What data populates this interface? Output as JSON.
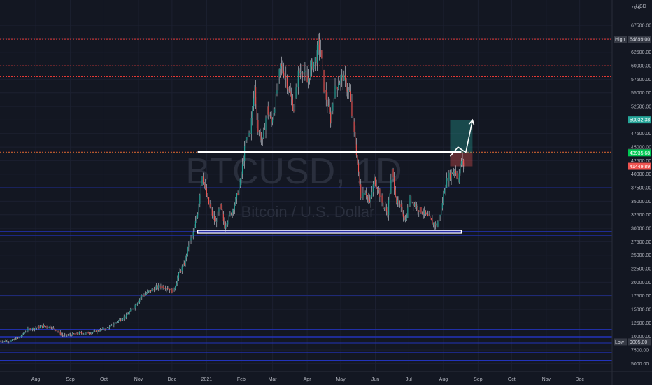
{
  "chart_data": {
    "type": "candlestick",
    "symbol": "BTCUSD",
    "interval": "1D",
    "watermark_symbol": "BTCUSD, 1D",
    "watermark_name": "Bitcoin / U.S. Dollar",
    "currency_label": "USD",
    "y_axis": {
      "min": 3500,
      "max": 71000,
      "scale": "linear",
      "ticks": [
        5000,
        7500,
        10000,
        12500,
        15000,
        17500,
        20000,
        22500,
        25000,
        27500,
        30000,
        32500,
        35000,
        37500,
        40000,
        42500,
        45000,
        47500,
        50000,
        52500,
        55000,
        57500,
        60000,
        62500,
        65000,
        67500
      ],
      "tick_labels": [
        "5000.00",
        "7500.00",
        "10000.00",
        "12500.00",
        "15000.00",
        "17500.00",
        "20000.00",
        "22500.00",
        "25000.00",
        "27500.00",
        "30000.00",
        "32500.00",
        "35000.00",
        "37500.00",
        "40000.00",
        "42500.00",
        "45000.00",
        "47500.00",
        "50000.00",
        "52500.00",
        "55000.00",
        "57500.00",
        "60000.00",
        "62500.00",
        "65000.00",
        "67500.00"
      ],
      "top_label": "70.0"
    },
    "x_axis": {
      "labels": [
        "Aug",
        "Sep",
        "Oct",
        "Nov",
        "Dec",
        "2021",
        "Feb",
        "Mar",
        "Apr",
        "May",
        "Jun",
        "Jul",
        "Aug",
        "Sep",
        "Oct",
        "Nov",
        "Dec"
      ],
      "range_days": [
        -25,
        523
      ]
    },
    "price_path": [
      [
        -25,
        9100
      ],
      [
        -15,
        9200
      ],
      [
        -8,
        9800
      ],
      [
        0,
        11300
      ],
      [
        7,
        11600
      ],
      [
        14,
        11900
      ],
      [
        21,
        11700
      ],
      [
        25,
        11200
      ],
      [
        31,
        10200
      ],
      [
        38,
        10300
      ],
      [
        45,
        10600
      ],
      [
        52,
        10600
      ],
      [
        59,
        10800
      ],
      [
        66,
        11300
      ],
      [
        73,
        11700
      ],
      [
        80,
        12800
      ],
      [
        88,
        13800
      ],
      [
        95,
        15500
      ],
      [
        102,
        17500
      ],
      [
        110,
        18500
      ],
      [
        118,
        19300
      ],
      [
        125,
        19000
      ],
      [
        130,
        18300
      ],
      [
        136,
        22000
      ],
      [
        140,
        23500
      ],
      [
        144,
        27000
      ],
      [
        148,
        29000
      ],
      [
        152,
        33000
      ],
      [
        156,
        40000
      ],
      [
        160,
        36000
      ],
      [
        164,
        33000
      ],
      [
        168,
        31000
      ],
      [
        172,
        34000
      ],
      [
        176,
        30500
      ],
      [
        180,
        32000
      ],
      [
        186,
        35000
      ],
      [
        190,
        38500
      ],
      [
        195,
        46000
      ],
      [
        199,
        48000
      ],
      [
        203,
        56000
      ],
      [
        206,
        48000
      ],
      [
        210,
        46000
      ],
      [
        214,
        52000
      ],
      [
        218,
        49500
      ],
      [
        222,
        54000
      ],
      [
        226,
        60000
      ],
      [
        230,
        58500
      ],
      [
        234,
        55000
      ],
      [
        238,
        52000
      ],
      [
        242,
        58500
      ],
      [
        246,
        59500
      ],
      [
        250,
        57000
      ],
      [
        254,
        60000
      ],
      [
        258,
        61500
      ],
      [
        260,
        64000
      ],
      [
        262,
        63000
      ],
      [
        265,
        56000
      ],
      [
        268,
        53000
      ],
      [
        271,
        50000
      ],
      [
        274,
        55000
      ],
      [
        278,
        57000
      ],
      [
        282,
        58000
      ],
      [
        285,
        56000
      ],
      [
        288,
        55000
      ],
      [
        291,
        49000
      ],
      [
        294,
        44000
      ],
      [
        298,
        36000
      ],
      [
        302,
        37000
      ],
      [
        306,
        34500
      ],
      [
        310,
        39000
      ],
      [
        314,
        37000
      ],
      [
        318,
        34000
      ],
      [
        322,
        33000
      ],
      [
        326,
        40500
      ],
      [
        330,
        35000
      ],
      [
        334,
        33500
      ],
      [
        338,
        31500
      ],
      [
        342,
        35500
      ],
      [
        346,
        34500
      ],
      [
        350,
        33500
      ],
      [
        354,
        33000
      ],
      [
        358,
        32000
      ],
      [
        362,
        31000
      ],
      [
        366,
        30500
      ],
      [
        370,
        33500
      ],
      [
        373,
        37500
      ],
      [
        376,
        39500
      ],
      [
        379,
        40000
      ],
      [
        382,
        41000
      ],
      [
        385,
        39000
      ],
      [
        388,
        42500
      ],
      [
        391,
        41449.89
      ]
    ],
    "last_price": 41449.89,
    "last_price_label": "41449.89",
    "high": {
      "label": "High",
      "value": 64899,
      "value_label": "64899.00"
    },
    "low": {
      "label": "Low",
      "value": 9005,
      "value_label": "9005.00"
    },
    "price_tags": [
      {
        "label": "50032.38",
        "value": 50032.38,
        "color": "#26a69a"
      },
      {
        "label": "44068.28",
        "value": 44068.28,
        "color": "#363a45"
      },
      {
        "label": "43935.68",
        "value": 43935.68,
        "color": "#00c853"
      },
      {
        "label": "41449.89",
        "value": 41449.89,
        "color": "#ef5350"
      }
    ],
    "red_lines": [
      64899,
      60000,
      58000,
      44068.28
    ],
    "green_line": 43935.68,
    "blue_lines": [
      37500,
      29400,
      28700,
      17600,
      11300,
      10000,
      9800,
      8800,
      7000,
      5500
    ],
    "support_zone": {
      "from_day": 152,
      "to_day": 388,
      "low": 29100,
      "high": 29600
    },
    "resistance_line": {
      "from_day": 152,
      "to_day": 388,
      "value": 44100
    },
    "position_box": {
      "from_day": 378,
      "to_day": 398,
      "entry": 43935.68,
      "target": 50032.38,
      "stop": 41449.89
    },
    "arrow_path": [
      [
        378,
        43300
      ],
      [
        385,
        45000
      ],
      [
        392,
        44000
      ],
      [
        398,
        50000
      ]
    ]
  }
}
